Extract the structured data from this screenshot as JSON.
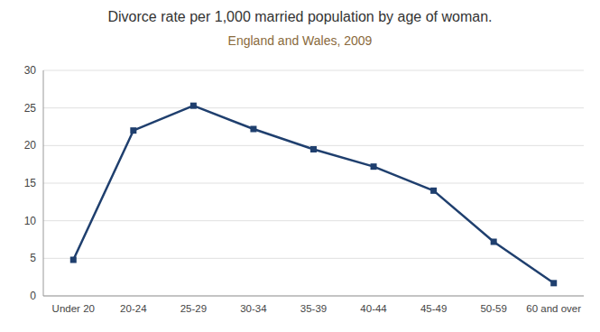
{
  "chart_data": {
    "type": "line",
    "title": "Divorce rate per 1,000 married population by age of woman.",
    "subtitle": "England and Wales, 2009",
    "categories": [
      "Under 20",
      "20-24",
      "25-29",
      "30-34",
      "35-39",
      "40-44",
      "45-49",
      "50-59",
      "60 and over"
    ],
    "values": [
      4.8,
      22.0,
      25.3,
      22.2,
      19.5,
      17.2,
      14.0,
      7.2,
      1.7
    ],
    "color": "#1F3F6E",
    "marker": "square",
    "ylim": [
      0,
      30
    ],
    "yticks": [
      0,
      5,
      10,
      15,
      20,
      25,
      30
    ],
    "grid": true
  }
}
